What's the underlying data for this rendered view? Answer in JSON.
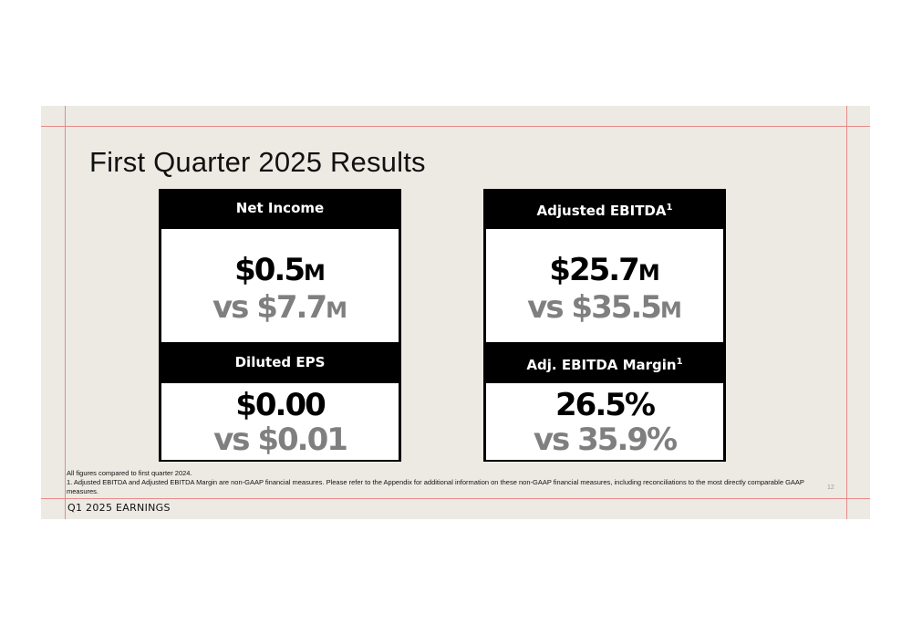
{
  "slide": {
    "title": "First Quarter 2025 Results",
    "footer_label": "Q1 2025 EARNINGS",
    "page_number": "12",
    "footnotes": [
      "All figures compared to first quarter 2024.",
      "1. Adjusted EBITDA and Adjusted EBITDA Margin are non-GAAP financial measures. Please refer to the Appendix for additional information on these non-GAAP financial measures, including reconciliations to the most directly comparable GAAP measures."
    ]
  },
  "metrics": {
    "net_income": {
      "label": "Net Income",
      "value": "$0.5",
      "unit": "M",
      "compare_prefix": "vs ",
      "compare": "$7.7",
      "compare_unit": "M"
    },
    "adjusted_ebitda": {
      "label": "Adjusted EBITDA",
      "footnote_mark": "1",
      "value": "$25.7",
      "unit": "M",
      "compare_prefix": "vs ",
      "compare": "$35.5",
      "compare_unit": "M"
    },
    "diluted_eps": {
      "label": "Diluted EPS",
      "value": "$0.00",
      "compare_prefix": "vs ",
      "compare": "$0.01"
    },
    "adj_ebitda_margin": {
      "label": "Adj. EBITDA Margin",
      "footnote_mark": "1",
      "value": "26.5%",
      "compare_prefix": "vs ",
      "compare": "35.9%"
    }
  },
  "colors": {
    "slide_background": "#edeae4",
    "card_header": "#000000",
    "primary_value": "#000000",
    "comparison_value": "#7f7f7f",
    "guide_lines": "#e58a8a"
  }
}
